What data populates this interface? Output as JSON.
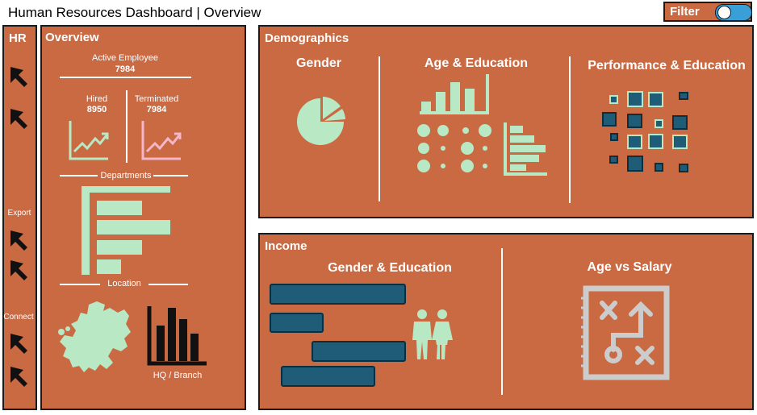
{
  "header": {
    "title": "Human Resources Dashboard | Overview"
  },
  "filter": {
    "label": "Filter"
  },
  "nav": {
    "title": "HR",
    "export_label": "Export",
    "connect_label": "Connect"
  },
  "overview": {
    "title": "Overview",
    "active_label": "Active Employee",
    "active_value": "7984",
    "hired_label": "Hired",
    "hired_value": "8950",
    "terminated_label": "Terminated",
    "terminated_value": "7984",
    "departments_label": "Departments",
    "location_label": "Location",
    "hq_label": "HQ / Branch"
  },
  "demographics": {
    "title": "Demographics",
    "gender_label": "Gender",
    "age_edu_label": "Age & Education",
    "perf_edu_label": "Performance & Education"
  },
  "income": {
    "title": "Income",
    "gender_edu_label": "Gender & Education",
    "age_salary_label": "Age vs Salary"
  },
  "colors": {
    "panel": "#c96a43",
    "mint": "#b9e8c5",
    "teal": "#1f5c78",
    "pink": "#f4b6c8",
    "toggle": "#3a9fd6"
  }
}
